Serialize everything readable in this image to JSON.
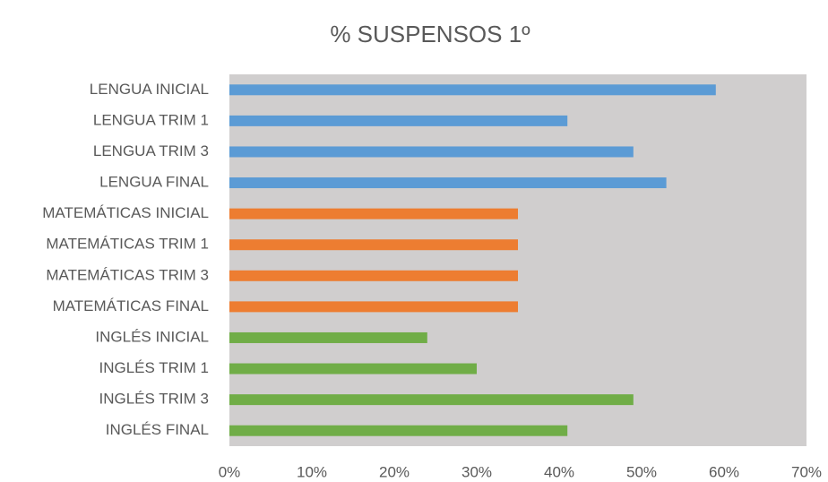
{
  "chart_data": {
    "type": "bar",
    "orientation": "horizontal",
    "title": "% SUSPENSOS 1º",
    "categories": [
      "LENGUA INICIAL",
      "LENGUA TRIM 1",
      "LENGUA TRIM 3",
      "LENGUA FINAL",
      "MATEMÁTICAS INICIAL",
      "MATEMÁTICAS TRIM 1",
      "MATEMÁTICAS TRIM 3",
      "MATEMÁTICAS FINAL",
      "INGLÉS INICIAL",
      "INGLÉS TRIM 1",
      "INGLÉS TRIM 3",
      "INGLÉS FINAL"
    ],
    "values": [
      59,
      41,
      49,
      53,
      35,
      35,
      35,
      35,
      24,
      30,
      49,
      41
    ],
    "colors": [
      "#5b9bd5",
      "#5b9bd5",
      "#5b9bd5",
      "#5b9bd5",
      "#ed7d31",
      "#ed7d31",
      "#ed7d31",
      "#ed7d31",
      "#70ad47",
      "#70ad47",
      "#70ad47",
      "#70ad47"
    ],
    "xlim": [
      0,
      70
    ],
    "xticks": [
      {
        "value": 0,
        "label": "0%"
      },
      {
        "value": 10,
        "label": "10%"
      },
      {
        "value": 20,
        "label": "20%"
      },
      {
        "value": 30,
        "label": "30%"
      },
      {
        "value": 40,
        "label": "40%"
      },
      {
        "value": 50,
        "label": "50%"
      },
      {
        "value": 60,
        "label": "60%"
      },
      {
        "value": 70,
        "label": "70%"
      }
    ],
    "plot_background": "#d0cece",
    "grid": false
  }
}
